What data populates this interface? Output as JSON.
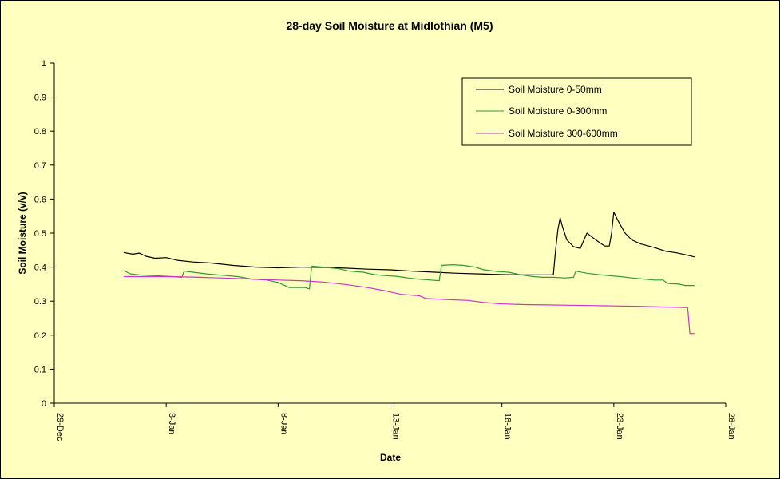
{
  "chart_data": {
    "type": "line",
    "title": "28-day Soil Moisture  at Midlothian (M5)",
    "xlabel": "Date",
    "ylabel": "Soil Moisture (v/v)",
    "ylim": [
      0,
      1
    ],
    "y_ticks": [
      "0",
      "0.1",
      "0.2",
      "0.3",
      "0.4",
      "0.5",
      "0.6",
      "0.7",
      "0.8",
      "0.9",
      "1"
    ],
    "x_ticks": [
      "29-Dec",
      "3-Jan",
      "8-Jan",
      "13-Jan",
      "18-Jan",
      "23-Jan",
      "28-Jan"
    ],
    "x_unit": "days after 29-Dec",
    "xlim": [
      0,
      30
    ],
    "grid": false,
    "legend_position": "top-right",
    "colors": {
      "background": "#FFFFC0",
      "plot_background": "#FFFFC0"
    },
    "series": [
      {
        "name": "Soil Moisture 0-50mm",
        "color": "#000000",
        "points": [
          [
            3.1,
            0.443
          ],
          [
            3.5,
            0.438
          ],
          [
            3.8,
            0.441
          ],
          [
            4.1,
            0.432
          ],
          [
            4.5,
            0.426
          ],
          [
            5.0,
            0.428
          ],
          [
            5.5,
            0.42
          ],
          [
            6.2,
            0.415
          ],
          [
            7.0,
            0.412
          ],
          [
            8.0,
            0.405
          ],
          [
            9.0,
            0.4
          ],
          [
            10.0,
            0.398
          ],
          [
            11.0,
            0.4
          ],
          [
            12.0,
            0.399
          ],
          [
            13.0,
            0.397
          ],
          [
            14.0,
            0.394
          ],
          [
            15.0,
            0.392
          ],
          [
            16.0,
            0.388
          ],
          [
            17.0,
            0.385
          ],
          [
            18.0,
            0.382
          ],
          [
            19.0,
            0.38
          ],
          [
            20.0,
            0.378
          ],
          [
            21.0,
            0.377
          ],
          [
            22.0,
            0.377
          ],
          [
            22.3,
            0.377
          ],
          [
            22.4,
            0.45
          ],
          [
            22.5,
            0.51
          ],
          [
            22.6,
            0.545
          ],
          [
            22.7,
            0.52
          ],
          [
            22.9,
            0.48
          ],
          [
            23.2,
            0.46
          ],
          [
            23.5,
            0.455
          ],
          [
            23.6,
            0.47
          ],
          [
            23.8,
            0.5
          ],
          [
            24.0,
            0.49
          ],
          [
            24.3,
            0.475
          ],
          [
            24.6,
            0.462
          ],
          [
            24.8,
            0.462
          ],
          [
            24.9,
            0.5
          ],
          [
            25.0,
            0.562
          ],
          [
            25.2,
            0.535
          ],
          [
            25.5,
            0.5
          ],
          [
            25.8,
            0.48
          ],
          [
            26.2,
            0.468
          ],
          [
            26.8,
            0.458
          ],
          [
            27.3,
            0.447
          ],
          [
            27.8,
            0.442
          ],
          [
            28.3,
            0.435
          ],
          [
            28.6,
            0.43
          ]
        ]
      },
      {
        "name": "Soil Moisture 0-300mm",
        "color": "#339933",
        "points": [
          [
            3.1,
            0.39
          ],
          [
            3.4,
            0.38
          ],
          [
            3.8,
            0.377
          ],
          [
            4.5,
            0.375
          ],
          [
            5.3,
            0.372
          ],
          [
            5.7,
            0.37
          ],
          [
            5.8,
            0.388
          ],
          [
            6.2,
            0.385
          ],
          [
            6.8,
            0.38
          ],
          [
            7.5,
            0.376
          ],
          [
            8.2,
            0.372
          ],
          [
            8.8,
            0.365
          ],
          [
            9.5,
            0.362
          ],
          [
            10.0,
            0.355
          ],
          [
            10.5,
            0.34
          ],
          [
            11.2,
            0.34
          ],
          [
            11.4,
            0.336
          ],
          [
            11.5,
            0.403
          ],
          [
            12.0,
            0.4
          ],
          [
            12.7,
            0.395
          ],
          [
            13.2,
            0.388
          ],
          [
            13.8,
            0.385
          ],
          [
            14.3,
            0.378
          ],
          [
            14.8,
            0.375
          ],
          [
            15.3,
            0.373
          ],
          [
            15.8,
            0.368
          ],
          [
            16.2,
            0.365
          ],
          [
            16.8,
            0.362
          ],
          [
            17.2,
            0.36
          ],
          [
            17.3,
            0.405
          ],
          [
            17.8,
            0.407
          ],
          [
            18.3,
            0.405
          ],
          [
            18.8,
            0.4
          ],
          [
            19.2,
            0.392
          ],
          [
            19.8,
            0.387
          ],
          [
            20.3,
            0.385
          ],
          [
            20.8,
            0.378
          ],
          [
            21.3,
            0.373
          ],
          [
            21.8,
            0.37
          ],
          [
            22.3,
            0.37
          ],
          [
            22.8,
            0.368
          ],
          [
            23.2,
            0.37
          ],
          [
            23.3,
            0.388
          ],
          [
            23.8,
            0.382
          ],
          [
            24.3,
            0.378
          ],
          [
            24.8,
            0.375
          ],
          [
            25.3,
            0.372
          ],
          [
            25.8,
            0.368
          ],
          [
            26.3,
            0.365
          ],
          [
            26.8,
            0.362
          ],
          [
            27.2,
            0.362
          ],
          [
            27.4,
            0.352
          ],
          [
            27.9,
            0.35
          ],
          [
            28.2,
            0.346
          ],
          [
            28.6,
            0.346
          ]
        ]
      },
      {
        "name": "Soil Moisture 300-600mm",
        "color": "#CC33CC",
        "points": [
          [
            3.1,
            0.372
          ],
          [
            4.0,
            0.372
          ],
          [
            5.0,
            0.372
          ],
          [
            6.0,
            0.371
          ],
          [
            7.0,
            0.369
          ],
          [
            8.0,
            0.367
          ],
          [
            9.0,
            0.364
          ],
          [
            10.0,
            0.362
          ],
          [
            11.0,
            0.36
          ],
          [
            12.0,
            0.356
          ],
          [
            13.0,
            0.349
          ],
          [
            14.0,
            0.34
          ],
          [
            14.8,
            0.33
          ],
          [
            15.5,
            0.32
          ],
          [
            16.3,
            0.316
          ],
          [
            16.6,
            0.308
          ],
          [
            17.5,
            0.305
          ],
          [
            18.5,
            0.302
          ],
          [
            19.2,
            0.296
          ],
          [
            20.0,
            0.292
          ],
          [
            21.0,
            0.29
          ],
          [
            22.0,
            0.289
          ],
          [
            23.0,
            0.288
          ],
          [
            24.0,
            0.287
          ],
          [
            25.0,
            0.286
          ],
          [
            26.0,
            0.285
          ],
          [
            27.0,
            0.283
          ],
          [
            27.8,
            0.282
          ],
          [
            28.3,
            0.281
          ],
          [
            28.4,
            0.205
          ],
          [
            28.6,
            0.205
          ]
        ]
      }
    ]
  }
}
